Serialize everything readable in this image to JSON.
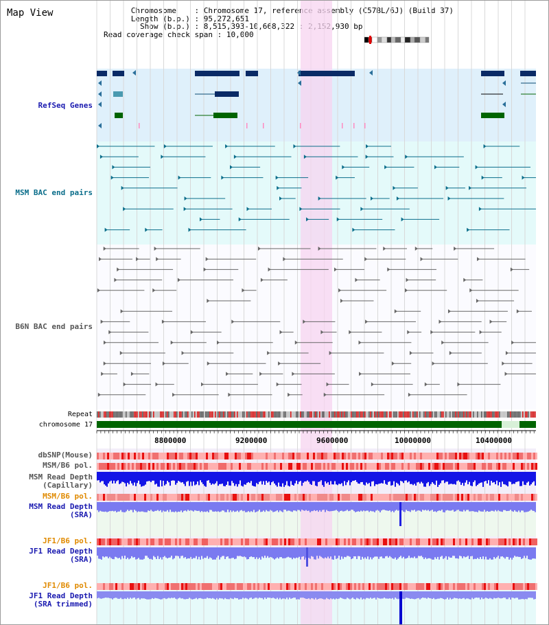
{
  "title": "Map View",
  "header": {
    "chromosome_label": "Chromosome",
    "chromosome_value": "Chromosome 17, reference assembly (C57BL/6J) (Build 37)",
    "length_label": "Length (b.p.)",
    "length_value": "95,272,651",
    "show_label": "Show (b.p.)",
    "show_value": "8,515,393-10,668,322 : 2,152,930 bp",
    "coverage_label": "Read coverage check span",
    "coverage_value": "10,000"
  },
  "tracks": {
    "refseq": "RefSeq Genes",
    "msm_bac": "MSM BAC end pairs",
    "b6n_bac": "B6N BAC end pairs",
    "repeat": "Repeat",
    "chromosome": "chromosome 17",
    "dbsnp": "dbSNP(Mouse)",
    "msm_b6_pol_1": "MSM/B6 pol.",
    "msm_read_depth_cap_1": "MSM Read Depth",
    "msm_read_depth_cap_2": "(Capillary)",
    "msm_b6_pol_2": "MSM/B6 pol.",
    "msm_read_depth_sra_1": "MSM Read Depth",
    "msm_read_depth_sra_2": "(SRA)",
    "jf1_b6_pol_1": "JF1/B6 pol.",
    "jf1_read_depth_sra_1": "JF1 Read Depth",
    "jf1_read_depth_sra_2": "(SRA)",
    "jf1_b6_pol_2": "JF1/B6 pol.",
    "jf1_read_depth_trim_1": "JF1 Read Depth",
    "jf1_read_depth_trim_2": "(SRA trimmed)"
  },
  "axis": {
    "ticks": [
      "8800000",
      "9200000",
      "9600000",
      "10000000",
      "10400000"
    ]
  },
  "colors": {
    "refseq_bg": "#dff0fb",
    "msm_bg": "#e4fafa",
    "highlight": "#f7d4f0",
    "gene": "#0a2a66",
    "chromosome": "#006400",
    "depth_blue": "#1414e6",
    "depth_light": "#7a7af0"
  }
}
